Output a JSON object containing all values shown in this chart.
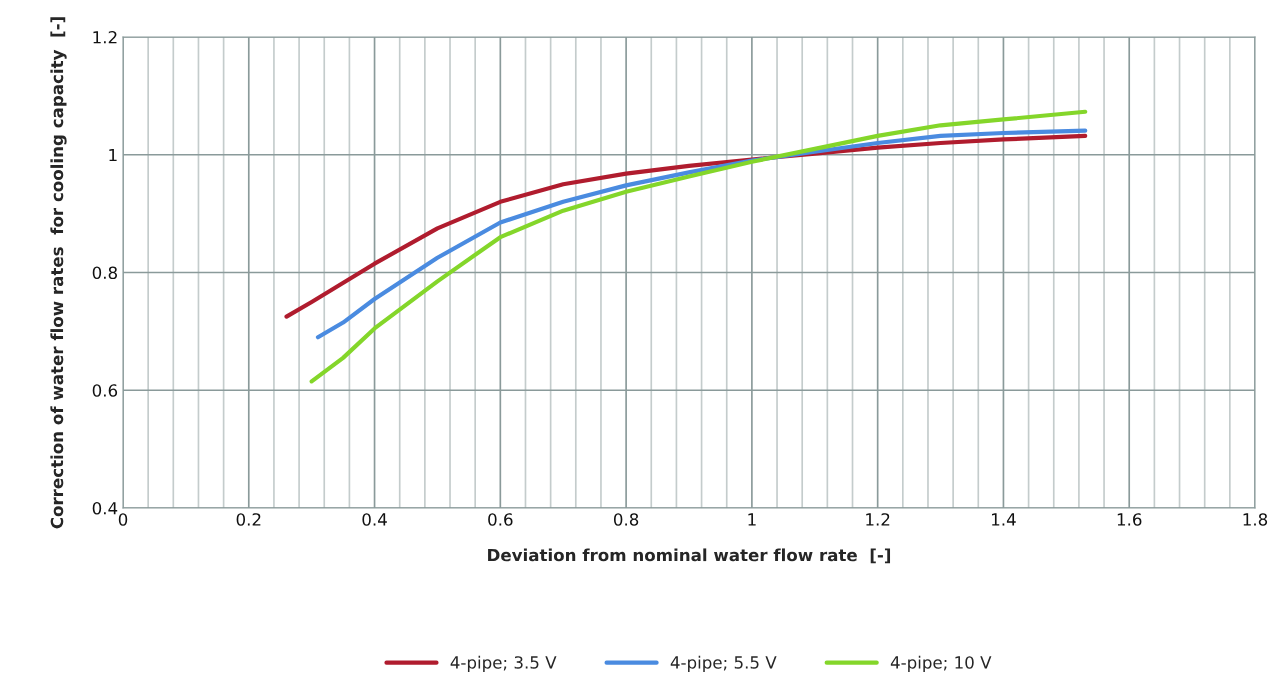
{
  "chart_data": {
    "type": "line",
    "xlabel": "Deviation from nominal water flow rate  [-]",
    "ylabel": "Correction of water flow rates  for cooling capacity  [-]",
    "series": [
      {
        "name": "4-pipe; 3.5 V",
        "color": "#b01c2e",
        "x": [
          0.26,
          0.3,
          0.4,
          0.5,
          0.6,
          0.7,
          0.8,
          0.9,
          1.0,
          1.1,
          1.2,
          1.3,
          1.4,
          1.53
        ],
        "values": [
          0.725,
          0.75,
          0.815,
          0.875,
          0.92,
          0.95,
          0.968,
          0.981,
          0.992,
          1.002,
          1.012,
          1.02,
          1.026,
          1.032
        ]
      },
      {
        "name": "4-pipe; 5.5 V",
        "color": "#4a8be0",
        "x": [
          0.31,
          0.35,
          0.4,
          0.5,
          0.6,
          0.7,
          0.8,
          0.9,
          1.0,
          1.1,
          1.2,
          1.3,
          1.4,
          1.53
        ],
        "values": [
          0.69,
          0.715,
          0.755,
          0.825,
          0.885,
          0.92,
          0.948,
          0.97,
          0.99,
          1.005,
          1.02,
          1.032,
          1.037,
          1.041
        ]
      },
      {
        "name": "4-pipe; 10 V",
        "color": "#84d62a",
        "x": [
          0.3,
          0.35,
          0.4,
          0.5,
          0.6,
          0.7,
          0.8,
          0.9,
          1.0,
          1.1,
          1.2,
          1.3,
          1.4,
          1.53
        ],
        "values": [
          0.615,
          0.655,
          0.705,
          0.785,
          0.86,
          0.905,
          0.937,
          0.963,
          0.988,
          1.01,
          1.032,
          1.05,
          1.06,
          1.073
        ]
      }
    ],
    "xlim": [
      0,
      1.8
    ],
    "ylim": [
      0.4,
      1.2
    ],
    "xticks": [
      0,
      {
        "value": 0.04,
        "label": null
      },
      {
        "value": 0.08,
        "label": null
      },
      {
        "value": 0.12,
        "label": null
      },
      {
        "value": 0.16,
        "label": null
      },
      0.2,
      {
        "value": 0.24,
        "label": null
      },
      {
        "value": 0.28,
        "label": null
      },
      {
        "value": 0.32,
        "label": null
      },
      {
        "value": 0.36,
        "label": null
      },
      0.4,
      {
        "value": 0.44,
        "label": null
      },
      {
        "value": 0.48,
        "label": null
      },
      {
        "value": 0.52,
        "label": null
      },
      {
        "value": 0.56,
        "label": null
      },
      0.6,
      {
        "value": 0.64,
        "label": null
      },
      {
        "value": 0.68,
        "label": null
      },
      {
        "value": 0.72,
        "label": null
      },
      {
        "value": 0.76,
        "label": null
      },
      0.8,
      {
        "value": 0.84,
        "label": null
      },
      {
        "value": 0.88,
        "label": null
      },
      {
        "value": 0.92,
        "label": null
      },
      {
        "value": 0.96,
        "label": null
      },
      1,
      {
        "value": 1.04,
        "label": null
      },
      {
        "value": 1.08,
        "label": null
      },
      {
        "value": 1.12,
        "label": null
      },
      {
        "value": 1.16,
        "label": null
      },
      1.2,
      {
        "value": 1.24,
        "label": null
      },
      {
        "value": 1.28,
        "label": null
      },
      {
        "value": 1.32,
        "label": null
      },
      {
        "value": 1.36,
        "label": null
      },
      1.4,
      {
        "value": 1.44,
        "label": null
      },
      {
        "value": 1.48,
        "label": null
      },
      {
        "value": 1.52,
        "label": null
      },
      {
        "value": 1.56,
        "label": null
      },
      1.6,
      {
        "value": 1.64,
        "label": null
      },
      {
        "value": 1.68,
        "label": null
      },
      {
        "value": 1.72,
        "label": null
      },
      {
        "value": 1.76,
        "label": null
      },
      1.8
    ],
    "yticks": [
      0.4,
      0.6,
      0.8,
      1,
      1.2
    ],
    "grid": true,
    "legend": "bottom",
    "marker": "none",
    "line_style": "solid"
  }
}
